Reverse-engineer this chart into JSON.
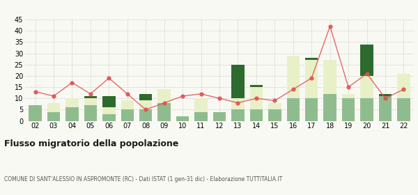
{
  "years": [
    "02",
    "03",
    "04",
    "05",
    "06",
    "07",
    "08",
    "09",
    "10",
    "11",
    "12",
    "13",
    "14",
    "15",
    "16",
    "17",
    "18",
    "19",
    "20",
    "21",
    "22"
  ],
  "iscritti_altri_comuni": [
    7,
    4,
    6,
    7,
    3,
    5,
    5,
    8,
    2,
    4,
    4,
    5,
    5,
    5,
    10,
    10,
    12,
    10,
    10,
    11,
    10
  ],
  "iscritti_estero": [
    0,
    4,
    4,
    3,
    3,
    4,
    4,
    6,
    0,
    6,
    0,
    5,
    10,
    3,
    19,
    17,
    15,
    2,
    10,
    0,
    11
  ],
  "iscritti_altri": [
    0,
    0,
    0,
    1,
    5,
    0,
    3,
    0,
    0,
    0,
    0,
    15,
    1,
    0,
    0,
    1,
    0,
    0,
    14,
    1,
    0
  ],
  "cancellati": [
    13,
    11,
    17,
    12,
    19,
    12,
    5,
    8,
    11,
    12,
    10,
    8,
    10,
    9,
    14,
    19,
    42,
    15,
    21,
    10,
    14
  ],
  "color_altri_comuni": "#8fbc8f",
  "color_estero": "#e8f0c8",
  "color_altri": "#2d6a2d",
  "color_cancellati": "#e05050",
  "title": "Flusso migratorio della popolazione",
  "subtitle": "COMUNE DI SANT'ALESSIO IN ASPROMONTE (RC) - Dati ISTAT (1 gen-31 dic) - Elaborazione TUTTITALIA.IT",
  "ylim": [
    0,
    45
  ],
  "yticks": [
    0,
    5,
    10,
    15,
    20,
    25,
    30,
    35,
    40,
    45
  ],
  "bg_color": "#f9f9f4",
  "grid_color": "#cccccc"
}
